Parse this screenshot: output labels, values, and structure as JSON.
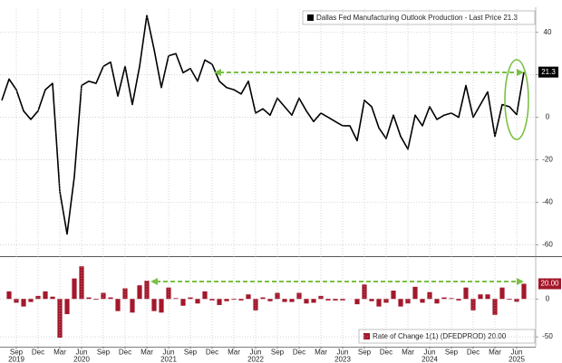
{
  "chart_data": [
    {
      "type": "line",
      "legend": "Dallas Fed Manufacturing Outlook Production - Last Price 21.3",
      "categories": [
        "2019-07",
        "2019-08",
        "2019-09",
        "2019-10",
        "2019-11",
        "2019-12",
        "2020-01",
        "2020-02",
        "2020-03",
        "2020-04",
        "2020-05",
        "2020-06",
        "2020-07",
        "2020-08",
        "2020-09",
        "2020-10",
        "2020-11",
        "2020-12",
        "2021-01",
        "2021-02",
        "2021-03",
        "2021-04",
        "2021-05",
        "2021-06",
        "2021-07",
        "2021-08",
        "2021-09",
        "2021-10",
        "2021-11",
        "2021-12",
        "2022-01",
        "2022-02",
        "2022-03",
        "2022-04",
        "2022-05",
        "2022-06",
        "2022-07",
        "2022-08",
        "2022-09",
        "2022-10",
        "2022-11",
        "2022-12",
        "2023-01",
        "2023-02",
        "2023-03",
        "2023-04",
        "2023-05",
        "2023-06",
        "2023-07",
        "2023-08",
        "2023-09",
        "2023-10",
        "2023-11",
        "2023-12",
        "2024-01",
        "2024-02",
        "2024-03",
        "2024-04",
        "2024-05",
        "2024-06",
        "2024-07",
        "2024-08",
        "2024-09",
        "2024-10",
        "2024-11",
        "2024-12",
        "2025-01",
        "2025-02",
        "2025-03",
        "2025-04",
        "2025-05",
        "2025-06",
        "2025-07"
      ],
      "series": [
        {
          "name": "Dallas Fed Manufacturing Outlook Production",
          "color": "#000000",
          "values": [
            8,
            18,
            13,
            3,
            -1,
            3,
            13,
            16,
            -35,
            -55,
            -28,
            15,
            17,
            16,
            24,
            26,
            10,
            24,
            6,
            24,
            48,
            32,
            14,
            29,
            30,
            21,
            23,
            17,
            27,
            25,
            17,
            14,
            13,
            11,
            17,
            2,
            4,
            1,
            9,
            5,
            1,
            9,
            3,
            -2,
            2,
            0,
            -2,
            -4,
            -4,
            -11,
            8,
            5,
            -5,
            -10,
            1,
            -9,
            -15,
            1,
            -4,
            5,
            -1,
            1,
            2,
            0,
            15,
            0,
            6,
            12,
            -9,
            6,
            5,
            1.3,
            21.3
          ]
        }
      ],
      "ylim": [
        -65,
        51
      ],
      "yticks": [
        40,
        20,
        0,
        -20,
        -40,
        -60
      ],
      "grid": true
    },
    {
      "type": "bar",
      "legend": "Rate of Change 1(1) (DFEDPROD) 20.00",
      "series": [
        {
          "name": "Rate of Change",
          "color": "#a3182b",
          "values": [
            null,
            10,
            -5,
            -10,
            -4,
            4,
            10,
            3,
            -51,
            -20,
            27,
            43,
            2,
            -1,
            8,
            2,
            -16,
            14,
            -18,
            18,
            24,
            -16,
            -18,
            15,
            1,
            -9,
            2,
            -6,
            10,
            -2,
            -8,
            -3,
            -1,
            -2,
            6,
            -15,
            2,
            -3,
            8,
            -4,
            -4,
            8,
            -6,
            -5,
            4,
            -2,
            -2,
            -2,
            0,
            -7,
            19,
            -3,
            -10,
            -5,
            11,
            -10,
            -6,
            16,
            -5,
            9,
            -6,
            2,
            1,
            -2,
            15,
            -15,
            6,
            6,
            -21,
            15,
            -1,
            -3.7,
            20
          ],
          "value_labels": [
            null,
            null,
            null,
            null,
            null,
            null,
            null,
            null,
            null,
            null,
            null,
            null,
            null,
            null,
            null,
            null,
            null,
            null,
            null,
            null,
            null,
            null,
            null,
            null,
            null,
            null,
            null,
            null,
            null,
            null,
            null,
            null,
            null,
            null,
            null,
            null,
            null,
            null,
            null,
            null,
            null,
            null,
            null,
            null,
            null,
            null,
            null,
            null,
            null,
            null,
            null,
            null,
            null,
            null,
            null,
            null,
            null,
            null,
            null,
            null,
            null,
            null,
            null,
            null,
            null,
            null,
            null,
            null,
            null,
            null,
            null,
            null,
            "20.00"
          ]
        }
      ],
      "ylim": [
        -63,
        54
      ],
      "yticks": [
        0,
        -50
      ],
      "grid": true,
      "xticks": [
        {
          "value": "2019-09",
          "label": "Sep"
        },
        {
          "value": "2019-12",
          "label": "Dec"
        },
        {
          "value": "2020-03",
          "label": "Mar"
        },
        {
          "value": "2020-06",
          "label": "Jun"
        },
        {
          "value": "2020-09",
          "label": "Sep"
        },
        {
          "value": "2020-12",
          "label": "Dec"
        },
        {
          "value": "2021-03",
          "label": "Mar"
        },
        {
          "value": "2021-06",
          "label": "Jun"
        },
        {
          "value": "2021-09",
          "label": "Sep"
        },
        {
          "value": "2021-12",
          "label": "Dec"
        },
        {
          "value": "2022-03",
          "label": "Mar"
        },
        {
          "value": "2022-06",
          "label": "Jun"
        },
        {
          "value": "2022-09",
          "label": "Sep"
        },
        {
          "value": "2022-12",
          "label": "Dec"
        },
        {
          "value": "2023-03",
          "label": "Mar"
        },
        {
          "value": "2023-06",
          "label": "Jun"
        },
        {
          "value": "2023-09",
          "label": "Sep"
        },
        {
          "value": "2023-12",
          "label": "Dec"
        },
        {
          "value": "2024-03",
          "label": "Mar"
        },
        {
          "value": "2024-06",
          "label": "Jun"
        },
        {
          "value": "2024-09",
          "label": "Sep"
        },
        {
          "value": "2024-12",
          "label": "Dec"
        },
        {
          "value": "2025-03",
          "label": "Mar"
        },
        {
          "value": "2025-06",
          "label": "Jun"
        }
      ],
      "year_labels": [
        {
          "value": "2019-09",
          "label": "2019"
        },
        {
          "value": "2020-06",
          "label": "2020"
        },
        {
          "value": "2021-06",
          "label": "2021"
        },
        {
          "value": "2022-06",
          "label": "2022"
        },
        {
          "value": "2023-06",
          "label": "2023"
        },
        {
          "value": "2024-06",
          "label": "2024"
        },
        {
          "value": "2025-06",
          "label": "2025"
        }
      ]
    }
  ]
}
